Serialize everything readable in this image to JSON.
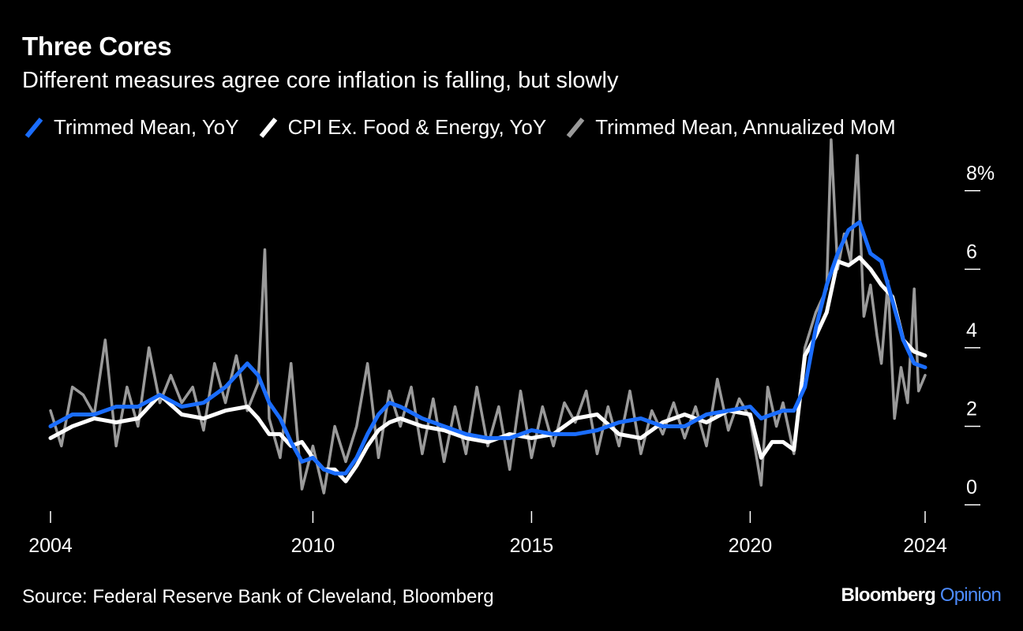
{
  "header": {
    "title": "Three Cores",
    "subtitle": "Different measures agree core inflation is falling, but slowly"
  },
  "footer": {
    "source": "Source: Federal Reserve Bank of Cleveland, Bloomberg",
    "brand_primary": "Bloomberg",
    "brand_secondary": "Opinion"
  },
  "colors": {
    "background": "#000000",
    "trimmed_yoy": "#1a6dff",
    "cpi_core_yoy": "#ffffff",
    "trimmed_mom": "#9a9a9a"
  },
  "chart_data": {
    "type": "line",
    "title": "Three Cores",
    "subtitle": "Different measures agree core inflation is falling, but slowly",
    "xlabel": "",
    "ylabel": "",
    "x_ticks": [
      2004,
      2010,
      2015,
      2020,
      2024
    ],
    "y_ticks": [
      0,
      2,
      4,
      6,
      8
    ],
    "y_tick_labels": [
      "0",
      "2",
      "4",
      "6",
      "8%"
    ],
    "xlim": [
      2004.0,
      2024.0
    ],
    "ylim": [
      -0.2,
      9.0
    ],
    "legend_position": "top-left",
    "grid": false,
    "series": [
      {
        "name": "Trimmed Mean, YoY",
        "color": "#1a6dff",
        "x": [
          2004.0,
          2004.5,
          2005.0,
          2005.5,
          2006.0,
          2006.5,
          2007.0,
          2007.5,
          2008.0,
          2008.5,
          2008.75,
          2009.0,
          2009.25,
          2009.5,
          2009.75,
          2010.0,
          2010.25,
          2010.5,
          2010.75,
          2011.0,
          2011.25,
          2011.5,
          2011.75,
          2012.0,
          2012.5,
          2013.0,
          2013.5,
          2014.0,
          2014.5,
          2015.0,
          2015.5,
          2016.0,
          2016.5,
          2017.0,
          2017.5,
          2018.0,
          2018.5,
          2019.0,
          2019.5,
          2020.0,
          2020.25,
          2020.5,
          2020.75,
          2021.0,
          2021.25,
          2021.5,
          2021.75,
          2022.0,
          2022.25,
          2022.5,
          2022.75,
          2023.0,
          2023.25,
          2023.5,
          2023.75,
          2024.0
        ],
        "values": [
          2.0,
          2.3,
          2.3,
          2.5,
          2.5,
          2.8,
          2.5,
          2.6,
          3.0,
          3.6,
          3.3,
          2.6,
          2.2,
          1.6,
          1.1,
          1.2,
          0.9,
          0.8,
          0.8,
          1.2,
          1.8,
          2.3,
          2.6,
          2.5,
          2.2,
          2.0,
          1.8,
          1.7,
          1.7,
          1.9,
          1.8,
          1.8,
          1.9,
          2.1,
          2.2,
          2.0,
          2.0,
          2.3,
          2.4,
          2.5,
          2.2,
          2.3,
          2.4,
          2.4,
          3.0,
          4.5,
          5.6,
          6.4,
          7.0,
          7.2,
          6.4,
          6.2,
          5.2,
          4.2,
          3.6,
          3.5
        ]
      },
      {
        "name": "CPI Ex. Food & Energy, YoY",
        "color": "#ffffff",
        "x": [
          2004.0,
          2004.5,
          2005.0,
          2005.5,
          2006.0,
          2006.5,
          2007.0,
          2007.5,
          2008.0,
          2008.5,
          2008.75,
          2009.0,
          2009.25,
          2009.5,
          2009.75,
          2010.0,
          2010.25,
          2010.5,
          2010.75,
          2011.0,
          2011.25,
          2011.5,
          2011.75,
          2012.0,
          2012.5,
          2013.0,
          2013.5,
          2014.0,
          2014.5,
          2015.0,
          2015.5,
          2016.0,
          2016.5,
          2017.0,
          2017.5,
          2018.0,
          2018.5,
          2019.0,
          2019.5,
          2020.0,
          2020.25,
          2020.5,
          2020.75,
          2021.0,
          2021.25,
          2021.5,
          2021.75,
          2022.0,
          2022.25,
          2022.5,
          2022.75,
          2023.0,
          2023.25,
          2023.5,
          2023.75,
          2024.0
        ],
        "values": [
          1.7,
          2.0,
          2.2,
          2.1,
          2.2,
          2.8,
          2.3,
          2.2,
          2.4,
          2.5,
          2.2,
          1.8,
          1.8,
          1.5,
          1.6,
          1.2,
          0.9,
          0.9,
          0.6,
          1.0,
          1.5,
          1.9,
          2.1,
          2.2,
          2.0,
          1.9,
          1.7,
          1.6,
          1.8,
          1.7,
          1.8,
          2.2,
          2.3,
          1.8,
          1.7,
          2.1,
          2.3,
          2.1,
          2.4,
          2.3,
          1.2,
          1.6,
          1.6,
          1.4,
          3.8,
          4.3,
          4.9,
          6.2,
          6.1,
          6.3,
          6.0,
          5.6,
          5.3,
          4.2,
          3.9,
          3.8
        ]
      },
      {
        "name": "Trimmed Mean, Annualized MoM",
        "color": "#9a9a9a",
        "x": [
          2004.0,
          2004.25,
          2004.5,
          2004.75,
          2005.0,
          2005.25,
          2005.5,
          2005.75,
          2006.0,
          2006.25,
          2006.5,
          2006.75,
          2007.0,
          2007.25,
          2007.5,
          2007.75,
          2008.0,
          2008.25,
          2008.5,
          2008.75,
          2008.9,
          2009.0,
          2009.25,
          2009.5,
          2009.75,
          2010.0,
          2010.25,
          2010.5,
          2010.75,
          2011.0,
          2011.25,
          2011.5,
          2011.75,
          2012.0,
          2012.25,
          2012.5,
          2012.75,
          2013.0,
          2013.25,
          2013.5,
          2013.75,
          2014.0,
          2014.25,
          2014.5,
          2014.75,
          2015.0,
          2015.25,
          2015.5,
          2015.75,
          2016.0,
          2016.25,
          2016.5,
          2016.75,
          2017.0,
          2017.25,
          2017.5,
          2017.75,
          2018.0,
          2018.25,
          2018.5,
          2018.75,
          2019.0,
          2019.25,
          2019.5,
          2019.75,
          2020.0,
          2020.25,
          2020.4,
          2020.6,
          2020.75,
          2021.0,
          2021.25,
          2021.5,
          2021.75,
          2021.85,
          2022.0,
          2022.15,
          2022.3,
          2022.45,
          2022.6,
          2022.75,
          2022.9,
          2023.0,
          2023.15,
          2023.3,
          2023.45,
          2023.6,
          2023.75,
          2023.85,
          2024.0
        ],
        "values": [
          2.4,
          1.5,
          3.0,
          2.8,
          2.3,
          4.2,
          1.5,
          3.0,
          2.0,
          4.0,
          2.6,
          3.3,
          2.6,
          3.0,
          1.9,
          3.6,
          2.6,
          3.8,
          2.4,
          3.1,
          6.5,
          2.2,
          1.2,
          3.6,
          0.4,
          1.5,
          0.3,
          2.0,
          1.1,
          2.0,
          3.6,
          1.2,
          2.9,
          2.0,
          3.0,
          1.3,
          2.7,
          1.1,
          2.5,
          1.3,
          3.0,
          1.5,
          2.5,
          0.9,
          2.9,
          1.2,
          2.5,
          1.5,
          2.6,
          2.1,
          2.9,
          1.3,
          2.5,
          1.5,
          2.9,
          1.3,
          2.4,
          1.8,
          2.6,
          1.7,
          2.5,
          1.5,
          3.2,
          1.9,
          2.7,
          2.2,
          0.5,
          3.0,
          2.0,
          2.6,
          1.3,
          4.0,
          4.9,
          5.5,
          9.3,
          6.0,
          6.9,
          6.2,
          8.9,
          4.8,
          5.6,
          4.3,
          3.6,
          5.7,
          2.2,
          3.5,
          2.6,
          5.5,
          2.9,
          3.3
        ]
      }
    ]
  }
}
